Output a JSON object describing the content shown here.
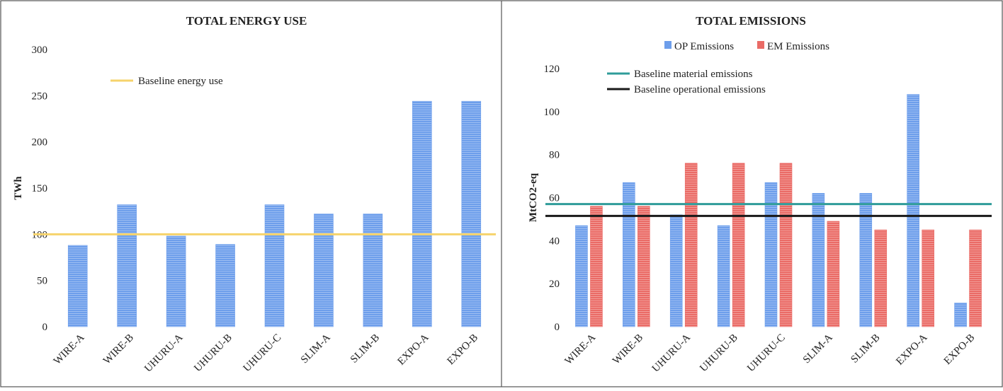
{
  "chart_data": [
    {
      "type": "bar",
      "title": "TOTAL ENERGY USE",
      "xlabel": "",
      "ylabel": "TWh",
      "ylim": [
        0,
        300
      ],
      "yticks": [
        0,
        50,
        100,
        150,
        200,
        250,
        300
      ],
      "categories": [
        "WIRE-A",
        "WIRE-B",
        "UHURU-A",
        "UHURU-B",
        "UHURU-C",
        "SLIM-A",
        "SLIM-B",
        "EXPO-A",
        "EXPO-B"
      ],
      "series": [
        {
          "values": [
            88,
            132,
            98,
            89,
            132,
            122,
            122,
            244,
            244
          ],
          "color": "#6d9eeb"
        }
      ],
      "reference_lines": [
        {
          "name": "Baseline energy use",
          "value": 100,
          "color": "#f6d36b"
        }
      ],
      "legend_position": "top-left",
      "grid": false
    },
    {
      "type": "bar",
      "title": "TOTAL EMISSIONS",
      "xlabel": "",
      "ylabel": "MtCO2-eq",
      "ylim": [
        0,
        120
      ],
      "yticks": [
        0,
        20,
        40,
        60,
        80,
        100,
        120
      ],
      "categories": [
        "WIRE-A",
        "WIRE-B",
        "UHURU-A",
        "UHURU-B",
        "UHURU-C",
        "SLIM-A",
        "SLIM-B",
        "EXPO-A",
        "EXPO-B"
      ],
      "series": [
        {
          "name": "OP Emissions",
          "values": [
            47,
            67,
            52,
            47,
            67,
            62,
            62,
            108,
            11
          ],
          "color": "#6d9eeb"
        },
        {
          "name": "EM Emissions",
          "values": [
            56,
            56,
            76,
            76,
            76,
            49,
            45,
            45,
            45
          ],
          "color": "#ea6b66"
        }
      ],
      "reference_lines": [
        {
          "name": "Baseline material emissions",
          "value": 57,
          "color": "#2f9c9a"
        },
        {
          "name": "Baseline operational emissions",
          "value": 51.5,
          "color": "#1a1a1a"
        }
      ],
      "legend_position": "top",
      "grid": false
    }
  ]
}
